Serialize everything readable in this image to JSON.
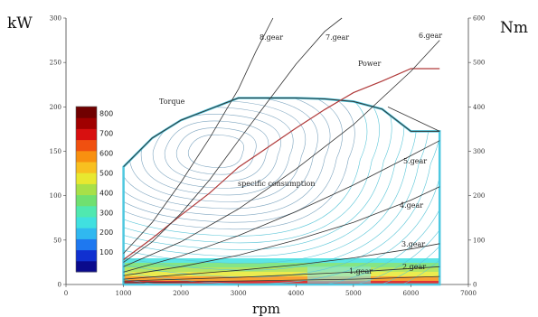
{
  "chart_data": {
    "type": "line",
    "title": "",
    "xlabel": "rpm",
    "ylabel_left": "kW",
    "ylabel_right": "Nm",
    "xlim": [
      0,
      7000
    ],
    "ylim_left": [
      0,
      300
    ],
    "ylim_right": [
      0,
      600
    ],
    "x_ticks": [
      "0",
      "1000",
      "2000",
      "3000",
      "4000",
      "5000",
      "6000",
      "7000"
    ],
    "y_left_ticks": [
      "0",
      "50",
      "100",
      "150",
      "200",
      "250",
      "300"
    ],
    "y_right_ticks": [
      "0",
      "100",
      "200",
      "300",
      "400",
      "500",
      "600"
    ],
    "colorbar": {
      "ticks": [
        "100",
        "200",
        "300",
        "400",
        "500",
        "600",
        "700",
        "800"
      ],
      "colors": [
        "#0a0a8c",
        "#1030d0",
        "#1e78f0",
        "#30b8f0",
        "#40e0e0",
        "#50e8b0",
        "#70e070",
        "#a8e048",
        "#e8e830",
        "#f8c020",
        "#f89010",
        "#f05010",
        "#d81010",
        "#a00000",
        "#700000"
      ]
    },
    "series": [
      {
        "name": "Torque",
        "axis": "right",
        "x": [
          1000,
          1500,
          2000,
          2500,
          2800,
          3000,
          3500,
          4000,
          4500,
          5000,
          5500,
          6000,
          6500
        ],
        "y": [
          265,
          330,
          370,
          395,
          410,
          420,
          420,
          420,
          418,
          412,
          395,
          345,
          345
        ]
      },
      {
        "name": "Power",
        "axis": "left",
        "x": [
          1000,
          1500,
          2000,
          2500,
          3000,
          3500,
          4000,
          4500,
          5000,
          5500,
          6000,
          6500
        ],
        "y": [
          28,
          52,
          78,
          103,
          132,
          154,
          176,
          197,
          216,
          229,
          243,
          243
        ]
      },
      {
        "name": "1.gear",
        "axis": "left",
        "x": [
          1000,
          2000,
          3000,
          4000,
          5000,
          6000,
          6500
        ],
        "y": [
          2,
          3,
          4,
          5,
          6,
          8,
          9
        ]
      },
      {
        "name": "2.gear",
        "axis": "left",
        "x": [
          1000,
          2000,
          3000,
          4000,
          5000,
          6000,
          6500
        ],
        "y": [
          4,
          6,
          8,
          11,
          14,
          18,
          20
        ]
      },
      {
        "name": "3.gear",
        "axis": "left",
        "x": [
          1000,
          2000,
          3000,
          4000,
          5000,
          6000,
          6500
        ],
        "y": [
          6,
          11,
          16,
          22,
          30,
          40,
          46
        ]
      },
      {
        "name": "4.gear",
        "axis": "left",
        "x": [
          1000,
          2000,
          3000,
          4000,
          5000,
          6000,
          6500
        ],
        "y": [
          10,
          20,
          33,
          50,
          70,
          95,
          110
        ]
      },
      {
        "name": "5.gear",
        "axis": "left",
        "x": [
          1000,
          2000,
          3000,
          4000,
          5000,
          6000,
          6500
        ],
        "y": [
          14,
          32,
          55,
          82,
          112,
          145,
          162
        ]
      },
      {
        "name": "6.gear",
        "axis": "left",
        "x": [
          1000,
          2000,
          3000,
          4000,
          5000,
          6000,
          6500
        ],
        "y": [
          20,
          48,
          85,
          130,
          180,
          240,
          275
        ]
      },
      {
        "name": "7.gear",
        "axis": "left",
        "x": [
          1000,
          1500,
          2000,
          2500,
          3000,
          3500,
          4000,
          4500,
          4800
        ],
        "y": [
          25,
          48,
          80,
          118,
          162,
          205,
          248,
          285,
          300
        ]
      },
      {
        "name": "8.gear",
        "axis": "left",
        "x": [
          1000,
          1500,
          2000,
          2500,
          3000,
          3300,
          3600
        ],
        "y": [
          35,
          70,
          115,
          165,
          220,
          262,
          300
        ]
      }
    ],
    "annotations": [
      "Torque",
      "Power",
      "specific consumption",
      "8.gear",
      "7.gear",
      "6.gear",
      "5.gear",
      "4.gear",
      "3.gear",
      "2.gear",
      "1.gear"
    ]
  }
}
